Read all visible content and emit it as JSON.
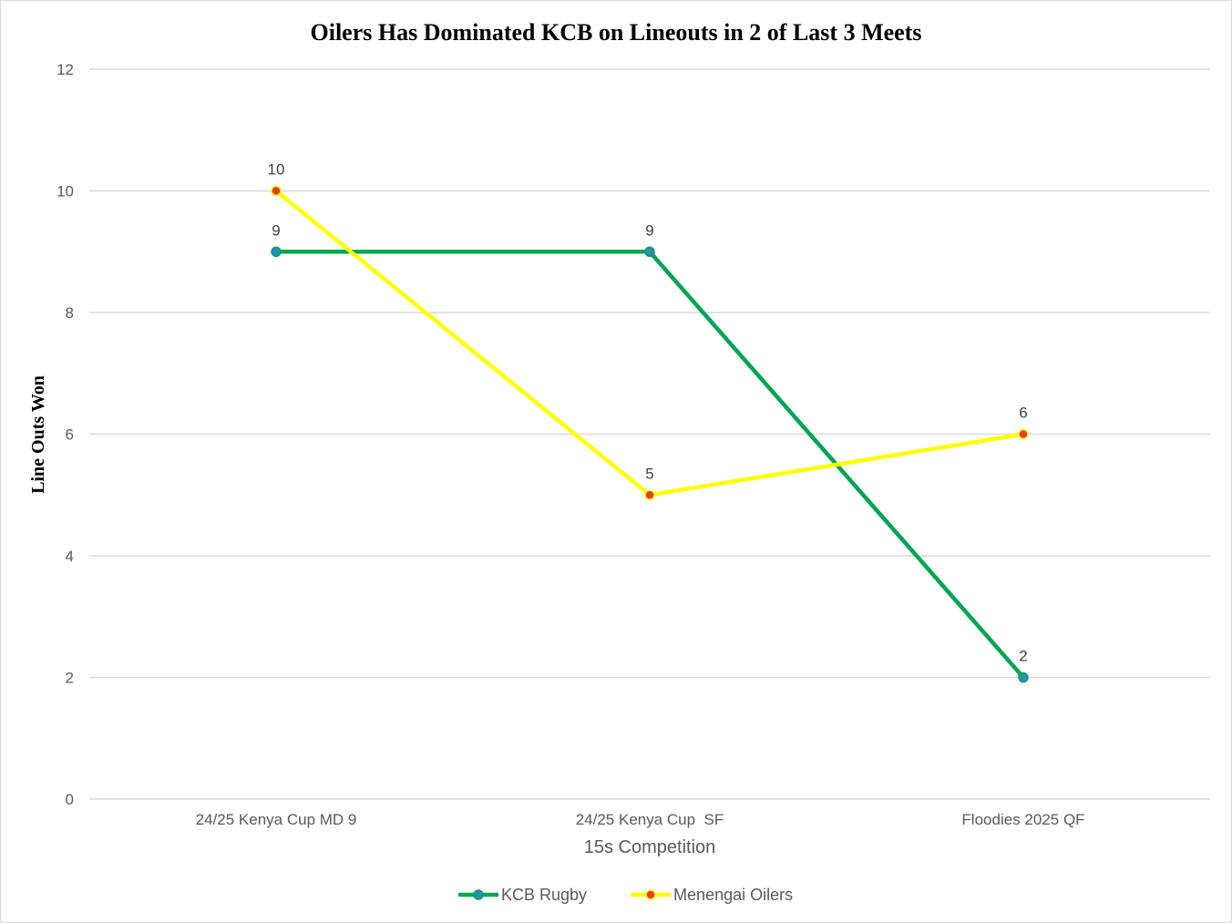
{
  "chart_data": {
    "type": "line",
    "title": "Oilers Has Dominated KCB on Lineouts in 2 of Last 3 Meets",
    "xlabel": "15s Competition",
    "ylabel": "Line Outs Won",
    "categories": [
      "24/25 Kenya Cup MD 9",
      "24/25 Kenya Cup  SF",
      "Floodies 2025 QF"
    ],
    "ylim": [
      0,
      12
    ],
    "yticks": [
      0,
      2,
      4,
      6,
      8,
      10,
      12
    ],
    "grid": true,
    "legend_position": "bottom",
    "series": [
      {
        "name": "KCB Rugby",
        "values": [
          9,
          9,
          2
        ],
        "line_color": "#00A651",
        "marker_color": "#2E8BC0"
      },
      {
        "name": "Menengai Oilers",
        "values": [
          10,
          5,
          6
        ],
        "line_color": "#FFFF00",
        "marker_color": "#E63B2E"
      }
    ]
  }
}
